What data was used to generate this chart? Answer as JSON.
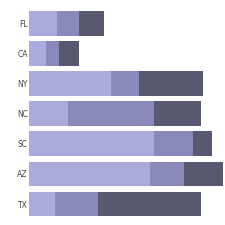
{
  "categories": [
    "FL",
    "CA",
    "NY",
    "NC",
    "SC",
    "AZ",
    "TX"
  ],
  "seg_data": [
    [
      13,
      10,
      12
    ],
    [
      8,
      6,
      9
    ],
    [
      38,
      13,
      30
    ],
    [
      18,
      40,
      22
    ],
    [
      58,
      18,
      9
    ],
    [
      56,
      16,
      18
    ],
    [
      12,
      20,
      48
    ]
  ],
  "colors": [
    "#aaaadd",
    "#8888bb",
    "#585870"
  ],
  "background": "#ffffff",
  "bar_height": 0.82,
  "xlim": [
    0,
    90
  ],
  "label_fontsize": 5.5,
  "figsize": [
    2.25,
    2.25
  ],
  "dpi": 100
}
